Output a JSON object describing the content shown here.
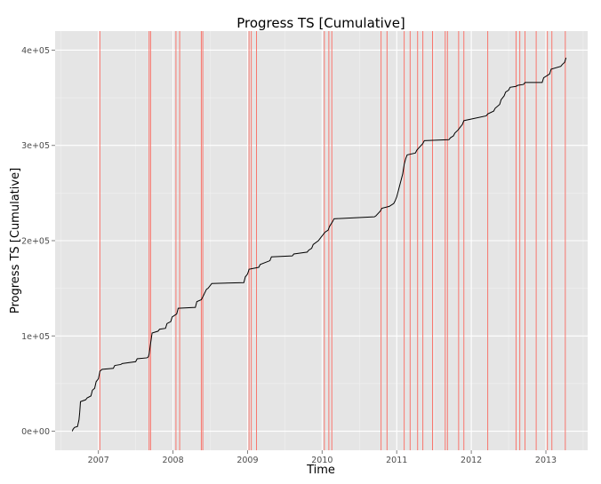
{
  "chart_data": {
    "type": "line",
    "title": "Progress TS [Cumulative]",
    "xlabel": "Time",
    "ylabel": "Progress TS [Cumulative]",
    "x_ticks": [
      "2007",
      "2008",
      "2009",
      "2010",
      "2011",
      "2012",
      "2013"
    ],
    "y_ticks": [
      "0e+00",
      "1e+05",
      "2e+05",
      "3e+05",
      "4e+05"
    ],
    "xlim": [
      2006.42,
      2013.56
    ],
    "ylim": [
      -20000,
      420000
    ],
    "grid": true,
    "background_color": "#e5e5e5",
    "line_color": "#000000",
    "vline_color": "#f8766d",
    "series": [
      {
        "x": [
          2006.65,
          2006.66,
          2006.68,
          2006.72,
          2006.74,
          2006.75,
          2006.76,
          2006.83,
          2006.85,
          2006.9,
          2006.92,
          2006.95,
          2006.97,
          2007.0,
          2007.02,
          2007.05,
          2007.2,
          2007.22,
          2007.3,
          2007.32,
          2007.5,
          2007.52,
          2007.65,
          2007.67,
          2007.68,
          2007.7,
          2007.72,
          2007.8,
          2007.82,
          2007.9,
          2007.92,
          2007.97,
          2007.99,
          2008.05,
          2008.07,
          2008.3,
          2008.32,
          2008.38,
          2008.4,
          2008.45,
          2008.47,
          2008.5,
          2008.52,
          2008.95,
          2008.97,
          2009.0,
          2009.02,
          2009.15,
          2009.17,
          2009.3,
          2009.32,
          2009.6,
          2009.62,
          2009.8,
          2009.82,
          2009.86,
          2009.88,
          2009.95,
          2009.97,
          2010.02,
          2010.04,
          2010.08,
          2010.1,
          2010.14,
          2010.16,
          2010.7,
          2010.72,
          2010.78,
          2010.8,
          2010.9,
          2010.92,
          2010.96,
          2010.98,
          2011.0,
          2011.02,
          2011.04,
          2011.06,
          2011.08,
          2011.1,
          2011.12,
          2011.14,
          2011.25,
          2011.27,
          2011.35,
          2011.37,
          2011.7,
          2011.72,
          2011.76,
          2011.78,
          2011.82,
          2011.84,
          2011.88,
          2011.9,
          2012.2,
          2012.22,
          2012.3,
          2012.32,
          2012.38,
          2012.4,
          2012.44,
          2012.46,
          2012.5,
          2012.52,
          2012.6,
          2012.62,
          2012.7,
          2012.72,
          2012.95,
          2012.97,
          2013.05,
          2013.07,
          2013.2,
          2013.22,
          2013.25,
          2013.27
        ],
        "y": [
          0,
          2000,
          4000,
          5000,
          12000,
          20000,
          31000,
          33000,
          35000,
          37000,
          43000,
          45000,
          52000,
          55000,
          63000,
          65000,
          66000,
          69000,
          70000,
          71000,
          73000,
          76000,
          77000,
          78000,
          81000,
          92000,
          103000,
          105000,
          107000,
          108000,
          113000,
          115000,
          120000,
          123000,
          129000,
          130000,
          136000,
          138000,
          141000,
          149000,
          150000,
          153000,
          155000,
          156000,
          162000,
          165000,
          170000,
          172000,
          175000,
          179000,
          183000,
          184000,
          186000,
          188000,
          190000,
          192000,
          196000,
          200000,
          202000,
          207000,
          209000,
          211000,
          215000,
          220000,
          223000,
          225000,
          226000,
          231000,
          234000,
          236000,
          237000,
          239000,
          242000,
          246000,
          252000,
          258000,
          264000,
          270000,
          280000,
          286000,
          290000,
          292000,
          295000,
          302000,
          305000,
          306000,
          308000,
          310000,
          313000,
          316000,
          318000,
          322000,
          326000,
          331000,
          333000,
          336000,
          339000,
          343000,
          348000,
          352000,
          356000,
          358000,
          361000,
          362000,
          363000,
          364000,
          366000,
          366000,
          371000,
          375000,
          380000,
          383000,
          385000,
          387000,
          392000
        ]
      }
    ],
    "vlines": [
      2007.02,
      2007.68,
      2007.7,
      2008.04,
      2008.09,
      2008.38,
      2008.4,
      2009.02,
      2009.05,
      2009.12,
      2010.03,
      2010.09,
      2010.13,
      2010.79,
      2010.87,
      2011.1,
      2011.18,
      2011.28,
      2011.35,
      2011.48,
      2011.65,
      2011.68,
      2011.83,
      2011.9,
      2012.22,
      2012.6,
      2012.65,
      2012.72,
      2012.87,
      2013.02,
      2013.08,
      2013.26
    ]
  }
}
